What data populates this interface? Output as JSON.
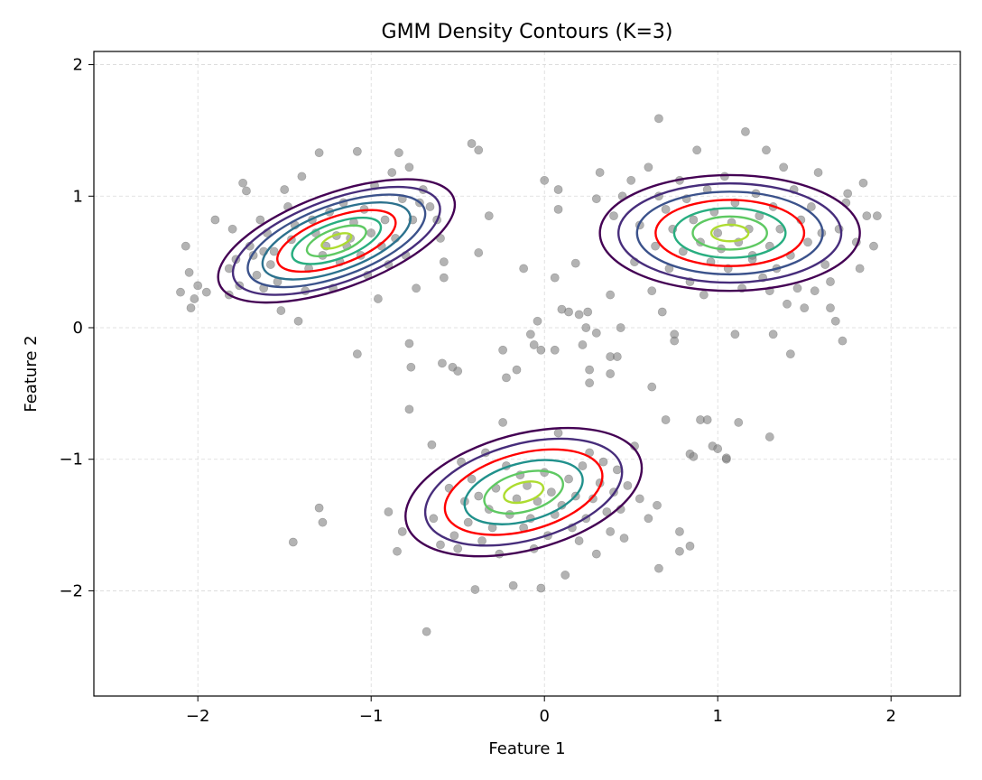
{
  "chart_data": {
    "type": "scatter",
    "title": "GMM Density Contours (K=3)",
    "xlabel": "Feature 1",
    "ylabel": "Feature 2",
    "xlim": [
      -2.6,
      2.4
    ],
    "ylim": [
      -2.8,
      2.1
    ],
    "xticks": [
      -2,
      -1,
      0,
      1,
      2
    ],
    "yticks": [
      -2,
      -1,
      0,
      1,
      2
    ],
    "xtick_labels": [
      "−2",
      "−1",
      "0",
      "1",
      "2"
    ],
    "ytick_labels": [
      "−2",
      "−1",
      "0",
      "1",
      "2"
    ],
    "grid": true,
    "point_color": "#808080",
    "highlight_contour_color": "#ff0000",
    "contour_colors": [
      "#440154",
      "#472d7b",
      "#3b528b",
      "#2c728e",
      "#21918c",
      "#28ae80",
      "#5ec962",
      "#addc30",
      "#fde725"
    ],
    "components": [
      {
        "mean": [
          -1.2,
          0.66
        ],
        "axes": [
          0.72,
          0.36
        ],
        "angle": 20,
        "levels": 8,
        "highlight_level": 4
      },
      {
        "mean": [
          1.07,
          0.72
        ],
        "axes": [
          0.75,
          0.44
        ],
        "angle": 0,
        "levels": 7,
        "highlight_level": 3
      },
      {
        "mean": [
          -0.12,
          -1.25
        ],
        "axes": [
          0.7,
          0.44
        ],
        "angle": 15,
        "levels": 6,
        "highlight_level": 2
      }
    ],
    "points": [
      [
        -2.1,
        0.27
      ],
      [
        -2.07,
        0.62
      ],
      [
        -2.05,
        0.42
      ],
      [
        -2.02,
        0.22
      ],
      [
        -2.04,
        0.15
      ],
      [
        -2.0,
        0.32
      ],
      [
        -1.95,
        0.27
      ],
      [
        -1.9,
        0.82
      ],
      [
        -1.82,
        0.25
      ],
      [
        -1.82,
        0.45
      ],
      [
        -1.8,
        0.75
      ],
      [
        -1.78,
        0.52
      ],
      [
        -1.76,
        0.32
      ],
      [
        -1.74,
        1.1
      ],
      [
        -1.72,
        1.04
      ],
      [
        -1.7,
        0.62
      ],
      [
        -1.68,
        0.55
      ],
      [
        -1.66,
        0.4
      ],
      [
        -1.64,
        0.82
      ],
      [
        -1.62,
        0.3
      ],
      [
        -1.6,
        0.72
      ],
      [
        -1.58,
        0.48
      ],
      [
        -1.56,
        0.58
      ],
      [
        -1.54,
        0.35
      ],
      [
        -1.52,
        0.13
      ],
      [
        -1.5,
        1.05
      ],
      [
        -1.48,
        0.92
      ],
      [
        -1.46,
        0.67
      ],
      [
        -1.44,
        0.78
      ],
      [
        -1.42,
        0.05
      ],
      [
        -1.4,
        1.15
      ],
      [
        -1.38,
        0.28
      ],
      [
        -1.36,
        0.45
      ],
      [
        -1.34,
        0.82
      ],
      [
        -1.32,
        0.72
      ],
      [
        -1.3,
        1.33
      ],
      [
        -1.28,
        0.55
      ],
      [
        -1.26,
        0.62
      ],
      [
        -1.24,
        0.88
      ],
      [
        -1.22,
        0.3
      ],
      [
        -1.2,
        0.7
      ],
      [
        -1.18,
        0.5
      ],
      [
        -1.16,
        0.95
      ],
      [
        -1.14,
        0.62
      ],
      [
        -1.12,
        0.68
      ],
      [
        -1.1,
        0.8
      ],
      [
        -1.08,
        1.34
      ],
      [
        -1.06,
        0.55
      ],
      [
        -1.04,
        0.9
      ],
      [
        -1.02,
        0.4
      ],
      [
        -1.0,
        0.72
      ],
      [
        -0.98,
        1.08
      ],
      [
        -0.96,
        0.22
      ],
      [
        -0.94,
        0.62
      ],
      [
        -0.92,
        0.82
      ],
      [
        -0.9,
        0.48
      ],
      [
        -0.88,
        1.18
      ],
      [
        -0.86,
        0.68
      ],
      [
        -0.84,
        1.33
      ],
      [
        -0.82,
        0.98
      ],
      [
        -0.8,
        0.55
      ],
      [
        -0.78,
        1.22
      ],
      [
        -0.76,
        0.82
      ],
      [
        -0.74,
        0.3
      ],
      [
        -0.72,
        0.95
      ],
      [
        -0.7,
        1.05
      ],
      [
        -0.66,
        0.92
      ],
      [
        -0.62,
        0.82
      ],
      [
        -0.6,
        0.68
      ],
      [
        -0.58,
        0.5
      ],
      [
        -0.58,
        0.38
      ],
      [
        -0.42,
        1.4
      ],
      [
        -0.38,
        1.35
      ],
      [
        -0.32,
        0.85
      ],
      [
        -1.08,
        -0.2
      ],
      [
        -0.78,
        -0.12
      ],
      [
        -0.77,
        -0.3
      ],
      [
        -0.78,
        -0.62
      ],
      [
        -0.59,
        -0.27
      ],
      [
        -0.53,
        -0.3
      ],
      [
        -0.5,
        -0.33
      ],
      [
        -0.38,
        0.57
      ],
      [
        -1.62,
        0.58
      ],
      [
        -1.3,
        -1.37
      ],
      [
        -1.28,
        -1.48
      ],
      [
        -1.45,
        -1.63
      ],
      [
        -0.9,
        -1.4
      ],
      [
        -0.85,
        -1.7
      ],
      [
        -0.82,
        -1.55
      ],
      [
        -0.65,
        -0.89
      ],
      [
        -0.64,
        -1.45
      ],
      [
        -0.68,
        -2.31
      ],
      [
        -0.6,
        -1.65
      ],
      [
        -0.55,
        -1.22
      ],
      [
        -0.52,
        -1.58
      ],
      [
        -0.5,
        -1.68
      ],
      [
        -0.48,
        -1.02
      ],
      [
        -0.46,
        -1.32
      ],
      [
        -0.44,
        -1.48
      ],
      [
        -0.42,
        -1.15
      ],
      [
        -0.4,
        -1.99
      ],
      [
        -0.38,
        -1.28
      ],
      [
        -0.36,
        -1.62
      ],
      [
        -0.34,
        -0.95
      ],
      [
        -0.32,
        -1.38
      ],
      [
        -0.3,
        -1.52
      ],
      [
        -0.28,
        -1.22
      ],
      [
        -0.26,
        -1.72
      ],
      [
        -0.24,
        -0.72
      ],
      [
        -0.22,
        -1.05
      ],
      [
        -0.2,
        -1.42
      ],
      [
        -0.18,
        -1.96
      ],
      [
        -0.16,
        -1.3
      ],
      [
        -0.14,
        -1.12
      ],
      [
        -0.12,
        -1.52
      ],
      [
        -0.1,
        -1.2
      ],
      [
        -0.08,
        -1.45
      ],
      [
        -0.06,
        -1.68
      ],
      [
        -0.04,
        -1.32
      ],
      [
        -0.02,
        -1.98
      ],
      [
        0.0,
        -1.1
      ],
      [
        0.02,
        -1.58
      ],
      [
        0.04,
        -1.25
      ],
      [
        0.06,
        -1.42
      ],
      [
        0.08,
        -0.8
      ],
      [
        0.1,
        -1.35
      ],
      [
        0.12,
        -1.88
      ],
      [
        0.14,
        -1.15
      ],
      [
        0.16,
        -1.52
      ],
      [
        0.18,
        -1.28
      ],
      [
        0.2,
        -1.62
      ],
      [
        0.22,
        -1.05
      ],
      [
        0.24,
        -1.45
      ],
      [
        0.26,
        -0.95
      ],
      [
        0.28,
        -1.3
      ],
      [
        0.3,
        -1.72
      ],
      [
        0.32,
        -1.18
      ],
      [
        0.34,
        -1.02
      ],
      [
        0.36,
        -1.4
      ],
      [
        0.38,
        -1.55
      ],
      [
        0.4,
        -1.25
      ],
      [
        0.42,
        -1.08
      ],
      [
        0.44,
        -1.38
      ],
      [
        0.46,
        -1.6
      ],
      [
        0.48,
        -1.2
      ],
      [
        0.52,
        -0.9
      ],
      [
        0.55,
        -1.3
      ],
      [
        0.6,
        -1.45
      ],
      [
        0.62,
        -0.45
      ],
      [
        0.65,
        -1.35
      ],
      [
        0.66,
        -1.83
      ],
      [
        0.7,
        -0.7
      ],
      [
        0.78,
        -1.55
      ],
      [
        0.78,
        -1.7
      ],
      [
        0.84,
        -1.66
      ],
      [
        0.84,
        -0.96
      ],
      [
        0.9,
        -0.7
      ],
      [
        0.94,
        -0.7
      ],
      [
        0.97,
        -0.9
      ],
      [
        1.0,
        -0.92
      ],
      [
        1.05,
        -1.0
      ],
      [
        1.05,
        -0.99
      ],
      [
        1.12,
        -0.72
      ],
      [
        1.3,
        -0.83
      ],
      [
        0.86,
        -0.98
      ],
      [
        -0.22,
        -0.38
      ],
      [
        -0.24,
        -0.17
      ],
      [
        -0.16,
        -0.32
      ],
      [
        -0.06,
        -0.13
      ],
      [
        -0.08,
        -0.05
      ],
      [
        -0.04,
        0.05
      ],
      [
        -0.02,
        -0.17
      ],
      [
        0.06,
        -0.17
      ],
      [
        0.06,
        0.38
      ],
      [
        0.1,
        0.14
      ],
      [
        0.14,
        0.12
      ],
      [
        0.18,
        0.49
      ],
      [
        0.2,
        0.1
      ],
      [
        0.22,
        -0.13
      ],
      [
        0.26,
        -0.42
      ],
      [
        0.26,
        -0.32
      ],
      [
        0.3,
        -0.04
      ],
      [
        0.32,
        1.18
      ],
      [
        0.38,
        0.25
      ],
      [
        0.38,
        -0.22
      ],
      [
        0.38,
        -0.35
      ],
      [
        0.42,
        -0.22
      ],
      [
        0.44,
        0.0
      ],
      [
        0.24,
        0.0
      ],
      [
        0.0,
        1.12
      ],
      [
        0.08,
        0.9
      ],
      [
        0.08,
        1.05
      ],
      [
        -0.12,
        0.45
      ],
      [
        0.25,
        0.12
      ],
      [
        0.3,
        0.98
      ],
      [
        0.4,
        0.85
      ],
      [
        0.45,
        1.0
      ],
      [
        0.5,
        1.12
      ],
      [
        0.52,
        0.5
      ],
      [
        0.55,
        0.78
      ],
      [
        0.6,
        1.22
      ],
      [
        0.62,
        0.28
      ],
      [
        0.64,
        0.62
      ],
      [
        0.66,
        1.0
      ],
      [
        0.66,
        1.59
      ],
      [
        0.68,
        0.12
      ],
      [
        0.7,
        0.9
      ],
      [
        0.72,
        0.45
      ],
      [
        0.74,
        0.75
      ],
      [
        0.75,
        -0.05
      ],
      [
        0.78,
        1.12
      ],
      [
        0.8,
        0.58
      ],
      [
        0.82,
        0.98
      ],
      [
        0.84,
        0.35
      ],
      [
        0.86,
        0.82
      ],
      [
        0.88,
        1.35
      ],
      [
        0.9,
        0.65
      ],
      [
        0.92,
        0.25
      ],
      [
        0.94,
        1.05
      ],
      [
        0.96,
        0.5
      ],
      [
        0.98,
        0.88
      ],
      [
        1.0,
        0.72
      ],
      [
        1.02,
        0.6
      ],
      [
        1.04,
        1.15
      ],
      [
        1.06,
        0.45
      ],
      [
        1.08,
        0.8
      ],
      [
        1.1,
        0.95
      ],
      [
        1.12,
        0.65
      ],
      [
        1.14,
        0.3
      ],
      [
        1.16,
        1.49
      ],
      [
        1.18,
        0.75
      ],
      [
        1.2,
        0.55
      ],
      [
        1.22,
        1.02
      ],
      [
        1.24,
        0.85
      ],
      [
        1.26,
        0.38
      ],
      [
        1.28,
        1.35
      ],
      [
        1.3,
        0.62
      ],
      [
        1.32,
        0.92
      ],
      [
        1.34,
        0.45
      ],
      [
        1.36,
        0.75
      ],
      [
        1.38,
        1.22
      ],
      [
        1.4,
        0.18
      ],
      [
        1.42,
        0.55
      ],
      [
        1.44,
        1.05
      ],
      [
        1.46,
        0.3
      ],
      [
        1.48,
        0.82
      ],
      [
        1.5,
        0.15
      ],
      [
        1.52,
        0.65
      ],
      [
        1.54,
        0.92
      ],
      [
        1.56,
        0.28
      ],
      [
        1.58,
        1.18
      ],
      [
        1.6,
        0.72
      ],
      [
        1.62,
        0.48
      ],
      [
        1.65,
        0.15
      ],
      [
        1.68,
        0.05
      ],
      [
        1.7,
        0.75
      ],
      [
        1.72,
        -0.1
      ],
      [
        1.74,
        0.95
      ],
      [
        1.75,
        1.02
      ],
      [
        1.8,
        0.65
      ],
      [
        1.82,
        0.45
      ],
      [
        1.84,
        1.1
      ],
      [
        1.86,
        0.85
      ],
      [
        1.9,
        0.62
      ],
      [
        1.92,
        0.85
      ],
      [
        1.1,
        -0.05
      ],
      [
        1.32,
        -0.05
      ],
      [
        1.42,
        -0.2
      ],
      [
        1.65,
        0.35
      ],
      [
        1.2,
        0.52
      ],
      [
        1.3,
        0.28
      ],
      [
        0.75,
        -0.1
      ]
    ]
  }
}
